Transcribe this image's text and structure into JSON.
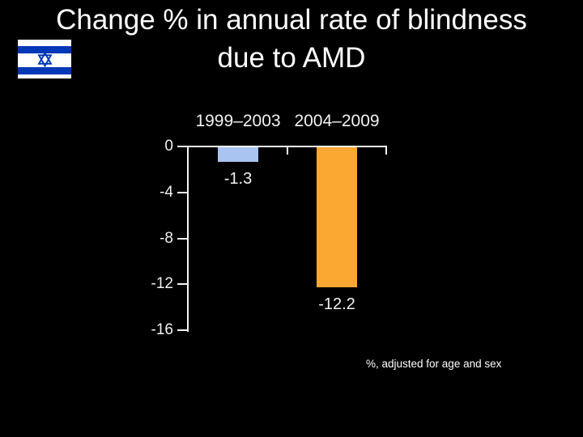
{
  "slide": {
    "title_line1": "Change % in annual rate of blindness",
    "title_line2": "due to AMD",
    "caption": "%, adjusted for age and sex"
  },
  "flag": {
    "icon": "flag-of-israel-icon",
    "star_icon": "star-of-david-icon"
  },
  "colors": {
    "background": "#000000",
    "title_text": "#FFFFFF",
    "chart_text": "#F2F2F2",
    "axis": "#F5F5F5",
    "flag_blue": "#0038B8",
    "bar_blue": "#A9C4F0",
    "bar_orange": "#FAA832"
  },
  "chart_data": {
    "type": "bar",
    "categories": [
      "1999–2003",
      "2004–2009"
    ],
    "values": [
      -1.3,
      -12.2
    ],
    "bar_labels": [
      "-1.3",
      "-12.2"
    ],
    "bar_colors": [
      "#A9C4F0",
      "#FAA832"
    ],
    "title": "",
    "xlabel": "",
    "ylabel": "",
    "ylim": [
      -16,
      0
    ],
    "yticks": [
      0,
      -4,
      -8,
      -12,
      -16
    ],
    "ytick_labels": [
      "0",
      "-4",
      "-8",
      "-12",
      "-16"
    ],
    "grid": false,
    "legend": false,
    "annotation": "%, adjusted for age and sex"
  }
}
